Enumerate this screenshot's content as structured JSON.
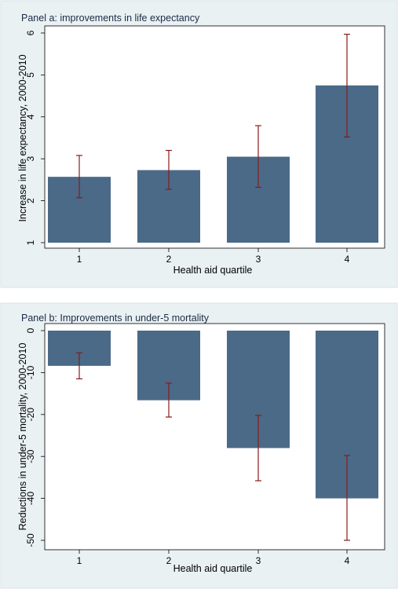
{
  "chart_data": [
    {
      "type": "bar",
      "title": "Panel a: improvements in life expectancy",
      "xlabel": "Health aid quartile",
      "ylabel": "Increase in life expectancy, 2000-2010",
      "categories": [
        "1",
        "2",
        "3",
        "4"
      ],
      "values": [
        2.57,
        2.73,
        3.05,
        4.75
      ],
      "error_low": [
        2.07,
        2.27,
        2.32,
        3.52
      ],
      "error_high": [
        3.08,
        3.2,
        3.79,
        5.97
      ],
      "bar_base": 1,
      "ylim": [
        0.85,
        6.3
      ],
      "yticks": [
        1,
        2,
        3,
        4,
        5,
        6
      ],
      "grid": false,
      "bar_color": "#4a6a88",
      "error_color": "#8b1a1a"
    },
    {
      "type": "bar",
      "title": "Panel b: Improvements in under-5 mortality",
      "xlabel": "Health aid quartile",
      "ylabel": "Reductions in under-5 mortality, 2000-2010",
      "categories": [
        "1",
        "2",
        "3",
        "4"
      ],
      "values": [
        -8.4,
        -16.6,
        -28.0,
        -40.0
      ],
      "error_low": [
        -11.5,
        -20.6,
        -35.8,
        -50.0
      ],
      "error_high": [
        -5.3,
        -12.5,
        -20.2,
        -29.8
      ],
      "bar_base": 0,
      "ylim": [
        -51.5,
        0.3
      ],
      "yticks": [
        0,
        -10,
        -20,
        -30,
        -40,
        -50
      ],
      "grid": false,
      "bar_color": "#4a6a88",
      "error_color": "#8b1a1a"
    }
  ]
}
